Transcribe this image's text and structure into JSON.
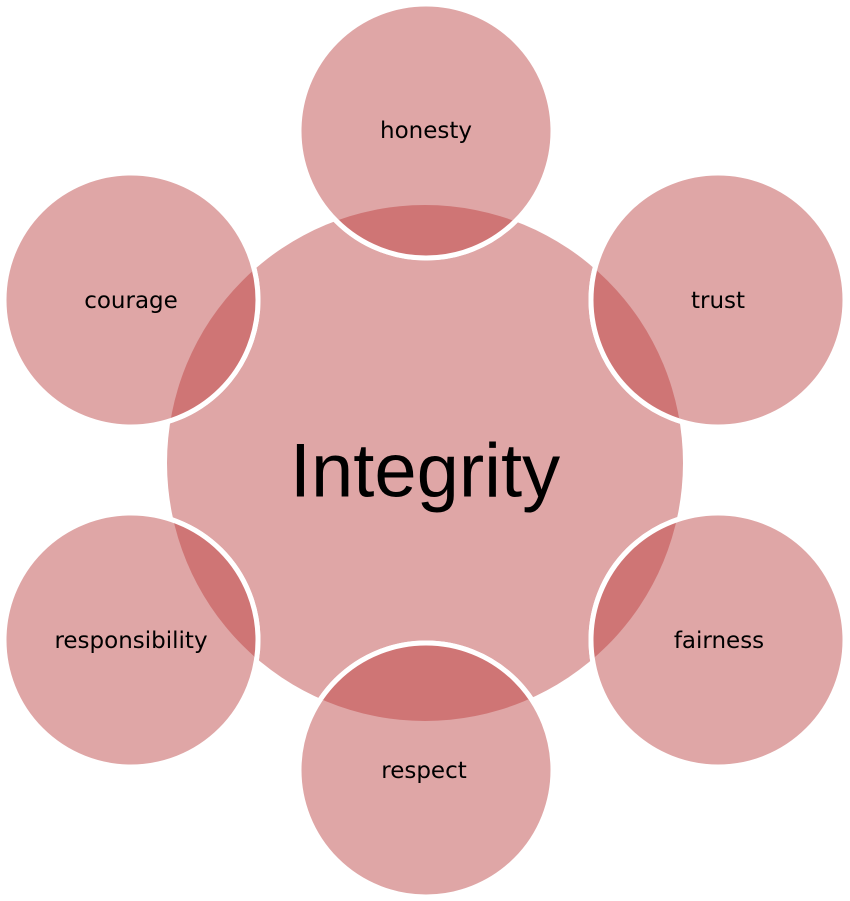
{
  "center": {
    "label": "Integrity"
  },
  "satellites": [
    {
      "id": "honesty",
      "label": "honesty"
    },
    {
      "id": "trust",
      "label": "trust"
    },
    {
      "id": "fairness",
      "label": "fairness"
    },
    {
      "id": "respect",
      "label": "respect"
    },
    {
      "id": "responsibility",
      "label": "responsibility"
    },
    {
      "id": "courage",
      "label": "courage"
    }
  ],
  "colors": {
    "fill": "#dfa6a6",
    "overlap": "#cf7575",
    "outline": "#ffffff",
    "text": "#000000"
  }
}
